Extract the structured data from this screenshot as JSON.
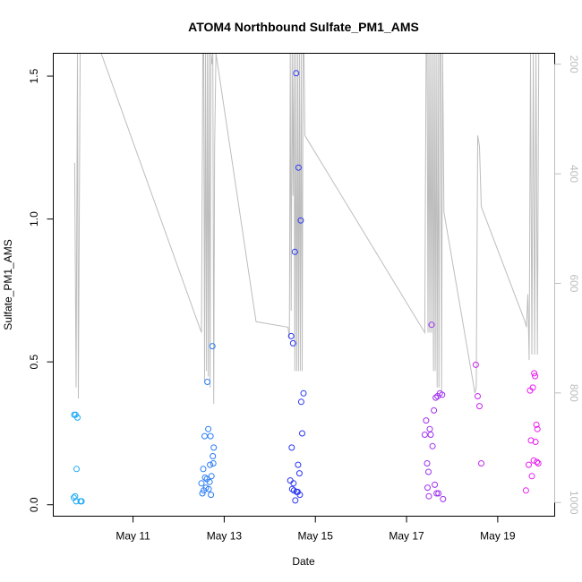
{
  "chart_data": {
    "type": "scatter",
    "title": "ATOM4 Northbound Sulfate_PM1_AMS",
    "xlabel": "Date",
    "ylabel": "Sulfate_PM1_AMS",
    "x_ticks": [
      "May 11",
      "May 13",
      "May 15",
      "May 17",
      "May 19"
    ],
    "x_tick_days": [
      11,
      13,
      15,
      17,
      19
    ],
    "xlim_days": [
      9.25,
      20.25
    ],
    "ylim": [
      -0.04,
      1.58
    ],
    "y_ticks": [
      "0.0",
      "0.5",
      "1.0",
      "1.5"
    ],
    "y_tick_values": [
      0.0,
      0.5,
      1.0,
      1.5
    ],
    "y2_label": "",
    "y2_ticks": [
      "200",
      "400",
      "600",
      "800",
      "1000"
    ],
    "y2_tick_values": [
      200,
      400,
      600,
      800,
      1000
    ],
    "y2lim": [
      1025,
      180
    ],
    "y2_reversed": true,
    "grid": false,
    "legend": "none",
    "color_scale": {
      "start": "#00bfff",
      "mid": "#1e3cff",
      "end": "#ff00ff"
    },
    "points": [
      {
        "day": 9.71,
        "y": 0.315,
        "color": "#1aa8f5"
      },
      {
        "day": 9.74,
        "y": 0.315,
        "color": "#1aa8f5"
      },
      {
        "day": 9.76,
        "y": 0.125,
        "color": "#1aa8f5"
      },
      {
        "day": 9.78,
        "y": 0.305,
        "color": "#1aa8f5"
      },
      {
        "day": 9.7,
        "y": 0.025,
        "color": "#1aa8f5"
      },
      {
        "day": 9.73,
        "y": 0.03,
        "color": "#1aa8f5"
      },
      {
        "day": 9.75,
        "y": 0.012,
        "color": "#1aa8f5"
      },
      {
        "day": 9.85,
        "y": 0.012,
        "color": "#1aa8f5"
      },
      {
        "day": 9.87,
        "y": 0.012,
        "color": "#1aa8f5"
      },
      {
        "day": 12.5,
        "y": 0.075,
        "color": "#2a7cf6"
      },
      {
        "day": 12.52,
        "y": 0.04,
        "color": "#2a7cf6"
      },
      {
        "day": 12.54,
        "y": 0.125,
        "color": "#2a7cf6"
      },
      {
        "day": 12.55,
        "y": 0.05,
        "color": "#2a7cf6"
      },
      {
        "day": 12.57,
        "y": 0.24,
        "color": "#2a7cf6"
      },
      {
        "day": 12.58,
        "y": 0.095,
        "color": "#2a7cf6"
      },
      {
        "day": 12.6,
        "y": 0.06,
        "color": "#2a7cf6"
      },
      {
        "day": 12.62,
        "y": 0.09,
        "color": "#2a7cf6"
      },
      {
        "day": 12.63,
        "y": 0.43,
        "color": "#2a7cf6"
      },
      {
        "day": 12.65,
        "y": 0.265,
        "color": "#2a7cf6"
      },
      {
        "day": 12.66,
        "y": 0.055,
        "color": "#2a7cf6"
      },
      {
        "day": 12.68,
        "y": 0.08,
        "color": "#2a7cf6"
      },
      {
        "day": 12.69,
        "y": 0.14,
        "color": "#2a7cf6"
      },
      {
        "day": 12.7,
        "y": 0.24,
        "color": "#2a7cf6"
      },
      {
        "day": 12.71,
        "y": 0.035,
        "color": "#2a7cf6"
      },
      {
        "day": 12.72,
        "y": 0.1,
        "color": "#2a7cf6"
      },
      {
        "day": 12.74,
        "y": 0.555,
        "color": "#2a7cf6"
      },
      {
        "day": 12.75,
        "y": 0.17,
        "color": "#2a7cf6"
      },
      {
        "day": 12.76,
        "y": 0.145,
        "color": "#2a7cf6"
      },
      {
        "day": 12.77,
        "y": 0.2,
        "color": "#2a7cf6"
      },
      {
        "day": 14.45,
        "y": 0.085,
        "color": "#2a36f3"
      },
      {
        "day": 14.47,
        "y": 0.59,
        "color": "#2a36f3"
      },
      {
        "day": 14.48,
        "y": 0.2,
        "color": "#2a36f3"
      },
      {
        "day": 14.49,
        "y": 0.055,
        "color": "#2a36f3"
      },
      {
        "day": 14.51,
        "y": 0.565,
        "color": "#2a36f3"
      },
      {
        "day": 14.52,
        "y": 0.075,
        "color": "#2a36f3"
      },
      {
        "day": 14.53,
        "y": 0.05,
        "color": "#2a36f3"
      },
      {
        "day": 14.55,
        "y": 0.885,
        "color": "#2a36f3"
      },
      {
        "day": 14.56,
        "y": 0.015,
        "color": "#2a36f3"
      },
      {
        "day": 14.58,
        "y": 1.51,
        "color": "#2a36f3"
      },
      {
        "day": 14.59,
        "y": 0.045,
        "color": "#2a36f3"
      },
      {
        "day": 14.61,
        "y": 0.045,
        "color": "#2a36f3"
      },
      {
        "day": 14.62,
        "y": 0.14,
        "color": "#2a36f3"
      },
      {
        "day": 14.63,
        "y": 1.18,
        "color": "#2a36f3"
      },
      {
        "day": 14.65,
        "y": 0.11,
        "color": "#2a36f3"
      },
      {
        "day": 14.66,
        "y": 0.035,
        "color": "#2a36f3"
      },
      {
        "day": 14.68,
        "y": 0.995,
        "color": "#2a36f3"
      },
      {
        "day": 14.69,
        "y": 0.36,
        "color": "#2a36f3"
      },
      {
        "day": 14.71,
        "y": 0.25,
        "color": "#2a36f3"
      },
      {
        "day": 14.74,
        "y": 0.39,
        "color": "#2a36f3"
      },
      {
        "day": 17.4,
        "y": 0.245,
        "color": "#a030ee"
      },
      {
        "day": 17.43,
        "y": 0.295,
        "color": "#a030ee"
      },
      {
        "day": 17.45,
        "y": 0.145,
        "color": "#a030ee"
      },
      {
        "day": 17.46,
        "y": 0.06,
        "color": "#a030ee"
      },
      {
        "day": 17.48,
        "y": 0.115,
        "color": "#a030ee"
      },
      {
        "day": 17.49,
        "y": 0.03,
        "color": "#a030ee"
      },
      {
        "day": 17.51,
        "y": 0.265,
        "color": "#a030ee"
      },
      {
        "day": 17.53,
        "y": 0.245,
        "color": "#a030ee"
      },
      {
        "day": 17.55,
        "y": 0.63,
        "color": "#a030ee"
      },
      {
        "day": 17.57,
        "y": 0.205,
        "color": "#a030ee"
      },
      {
        "day": 17.6,
        "y": 0.33,
        "color": "#a030ee"
      },
      {
        "day": 17.62,
        "y": 0.07,
        "color": "#a030ee"
      },
      {
        "day": 17.64,
        "y": 0.375,
        "color": "#a030ee"
      },
      {
        "day": 17.66,
        "y": 0.04,
        "color": "#a030ee"
      },
      {
        "day": 17.68,
        "y": 0.38,
        "color": "#a030ee"
      },
      {
        "day": 17.7,
        "y": 0.04,
        "color": "#a030ee"
      },
      {
        "day": 17.73,
        "y": 0.39,
        "color": "#a030ee"
      },
      {
        "day": 17.78,
        "y": 0.385,
        "color": "#a030ee"
      },
      {
        "day": 17.8,
        "y": 0.02,
        "color": "#a030ee"
      },
      {
        "day": 18.52,
        "y": 0.49,
        "color": "#c824f0"
      },
      {
        "day": 18.56,
        "y": 0.38,
        "color": "#c824f0"
      },
      {
        "day": 18.6,
        "y": 0.345,
        "color": "#c824f0"
      },
      {
        "day": 18.64,
        "y": 0.145,
        "color": "#c824f0"
      },
      {
        "day": 19.62,
        "y": 0.05,
        "color": "#e81ef0"
      },
      {
        "day": 19.68,
        "y": 0.14,
        "color": "#e81ef0"
      },
      {
        "day": 19.71,
        "y": 0.4,
        "color": "#e81ef0"
      },
      {
        "day": 19.73,
        "y": 0.225,
        "color": "#e81ef0"
      },
      {
        "day": 19.75,
        "y": 0.1,
        "color": "#e81ef0"
      },
      {
        "day": 19.77,
        "y": 0.41,
        "color": "#e81ef0"
      },
      {
        "day": 19.79,
        "y": 0.155,
        "color": "#e81ef0"
      },
      {
        "day": 19.8,
        "y": 0.46,
        "color": "#e81ef0"
      },
      {
        "day": 19.82,
        "y": 0.45,
        "color": "#e81ef0"
      },
      {
        "day": 19.83,
        "y": 0.22,
        "color": "#e81ef0"
      },
      {
        "day": 19.85,
        "y": 0.28,
        "color": "#e81ef0"
      },
      {
        "day": 19.86,
        "y": 0.15,
        "color": "#e81ef0"
      },
      {
        "day": 19.87,
        "y": 0.265,
        "color": "#e81ef0"
      },
      {
        "day": 19.89,
        "y": 0.145,
        "color": "#e81ef0"
      }
    ],
    "pressure_line": {
      "color": "#bdbdbd",
      "days": [
        9.72,
        9.75,
        9.78,
        9.8,
        9.84,
        9.87,
        9.91,
        9.95,
        10.3,
        12.5,
        12.53,
        12.55,
        12.57,
        12.59,
        12.61,
        12.63,
        12.65,
        12.67,
        12.69,
        12.71,
        12.73,
        12.75,
        12.77,
        12.79,
        12.82,
        13.7,
        14.4,
        14.43,
        14.45,
        14.47,
        14.49,
        14.51,
        14.53,
        14.55,
        14.57,
        14.59,
        14.61,
        14.63,
        14.65,
        14.67,
        14.69,
        14.71,
        14.73,
        14.75,
        14.77,
        17.4,
        17.43,
        17.45,
        17.47,
        17.49,
        17.51,
        17.53,
        17.55,
        17.57,
        17.59,
        17.61,
        17.63,
        17.65,
        17.67,
        17.69,
        17.71,
        17.73,
        17.75,
        17.77,
        17.79,
        17.82,
        18.5,
        18.53,
        18.56,
        18.6,
        18.64,
        19.6,
        19.63,
        19.66,
        19.69,
        19.72,
        19.75,
        19.78,
        19.81,
        19.84,
        19.87,
        19.9
      ],
      "pressure": [
        380,
        790,
        180,
        810,
        180,
        180,
        180,
        180,
        180,
        690,
        180,
        180,
        780,
        180,
        760,
        180,
        770,
        180,
        790,
        180,
        200,
        180,
        820,
        350,
        180,
        670,
        680,
        700,
        180,
        650,
        180,
        440,
        180,
        760,
        180,
        760,
        180,
        760,
        180,
        760,
        180,
        760,
        180,
        180,
        330,
        690,
        180,
        180,
        690,
        180,
        690,
        180,
        690,
        180,
        760,
        180,
        760,
        180,
        790,
        180,
        790,
        180,
        180,
        800,
        180,
        470,
        800,
        790,
        330,
        350,
        460,
        670,
        680,
        620,
        740,
        180,
        730,
        180,
        730,
        180,
        730,
        180
      ]
    }
  }
}
